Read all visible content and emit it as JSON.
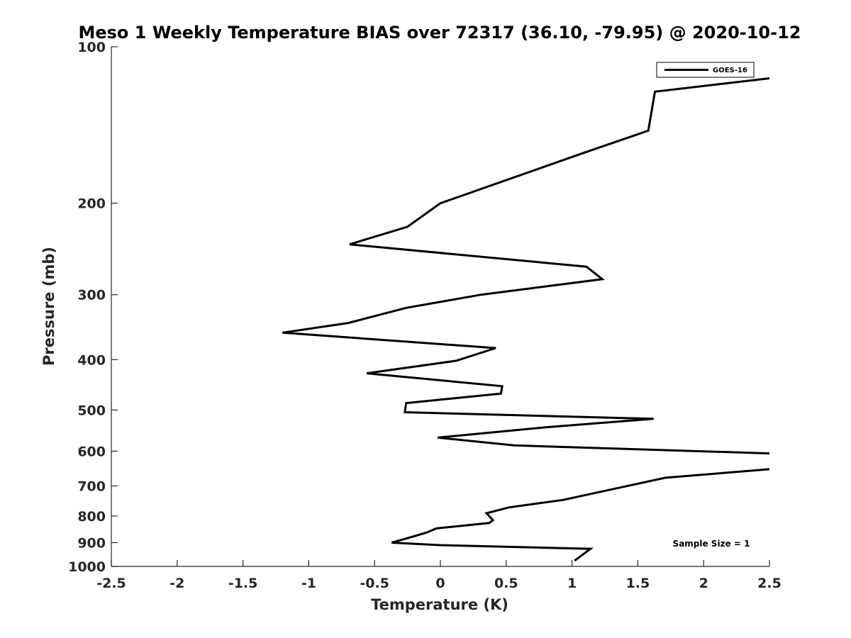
{
  "chart_data": {
    "type": "line",
    "title": "Meso 1 Weekly Temperature BIAS over 72317 (36.10, -79.95) @ 2020-10-12",
    "xlabel": "Temperature (K)",
    "ylabel": "Pressure (mb)",
    "xlim": [
      -2.5,
      2.5
    ],
    "ylim": [
      100,
      1000
    ],
    "y_scale": "log",
    "y_reversed": true,
    "grid": false,
    "legend_position": "top-right",
    "x_ticks": [
      "-2.5",
      "-2",
      "-1.5",
      "-1",
      "-0.5",
      "0",
      "0.5",
      "1",
      "1.5",
      "2",
      "2.5"
    ],
    "y_ticks": [
      "100",
      "200",
      "300",
      "400",
      "500",
      "600",
      "700",
      "800",
      "900",
      "1000"
    ],
    "annotation": "Sample Size = 1",
    "series": [
      {
        "name": "GOES-16",
        "color": "#000000",
        "points": [
          [
            1.02,
            975
          ],
          [
            1.14,
            925
          ],
          [
            0.0,
            910
          ],
          [
            -0.37,
            900
          ],
          [
            -0.2,
            875
          ],
          [
            -0.1,
            860
          ],
          [
            -0.03,
            845
          ],
          [
            0.37,
            825
          ],
          [
            0.4,
            815
          ],
          [
            0.35,
            790
          ],
          [
            0.52,
            770
          ],
          [
            0.93,
            745
          ],
          [
            1.71,
            675
          ],
          [
            2.5,
            650
          ],
          [
            2.55,
            645
          ]
        ]
      },
      {
        "name": "GOES-16",
        "color": "#000000",
        "points": [
          [
            2.55,
            606
          ],
          [
            2.5,
            606
          ],
          [
            0.56,
            585
          ],
          [
            -0.02,
            565
          ],
          [
            0.8,
            540
          ],
          [
            1.62,
            520
          ],
          [
            -0.27,
            505
          ],
          [
            -0.26,
            485
          ],
          [
            0.46,
            465
          ],
          [
            0.47,
            450
          ],
          [
            -0.56,
            425
          ],
          [
            0.12,
            402
          ],
          [
            0.42,
            380
          ],
          [
            -1.2,
            355
          ],
          [
            -0.7,
            340
          ],
          [
            -0.26,
            318
          ],
          [
            0.31,
            300
          ],
          [
            1.23,
            280
          ],
          [
            1.11,
            265
          ],
          [
            -0.69,
            240
          ],
          [
            -0.25,
            222
          ],
          [
            0.0,
            200
          ],
          [
            1.09,
            160
          ],
          [
            1.58,
            145
          ],
          [
            1.63,
            122
          ],
          [
            2.5,
            115
          ],
          [
            2.55,
            114
          ]
        ]
      }
    ]
  }
}
